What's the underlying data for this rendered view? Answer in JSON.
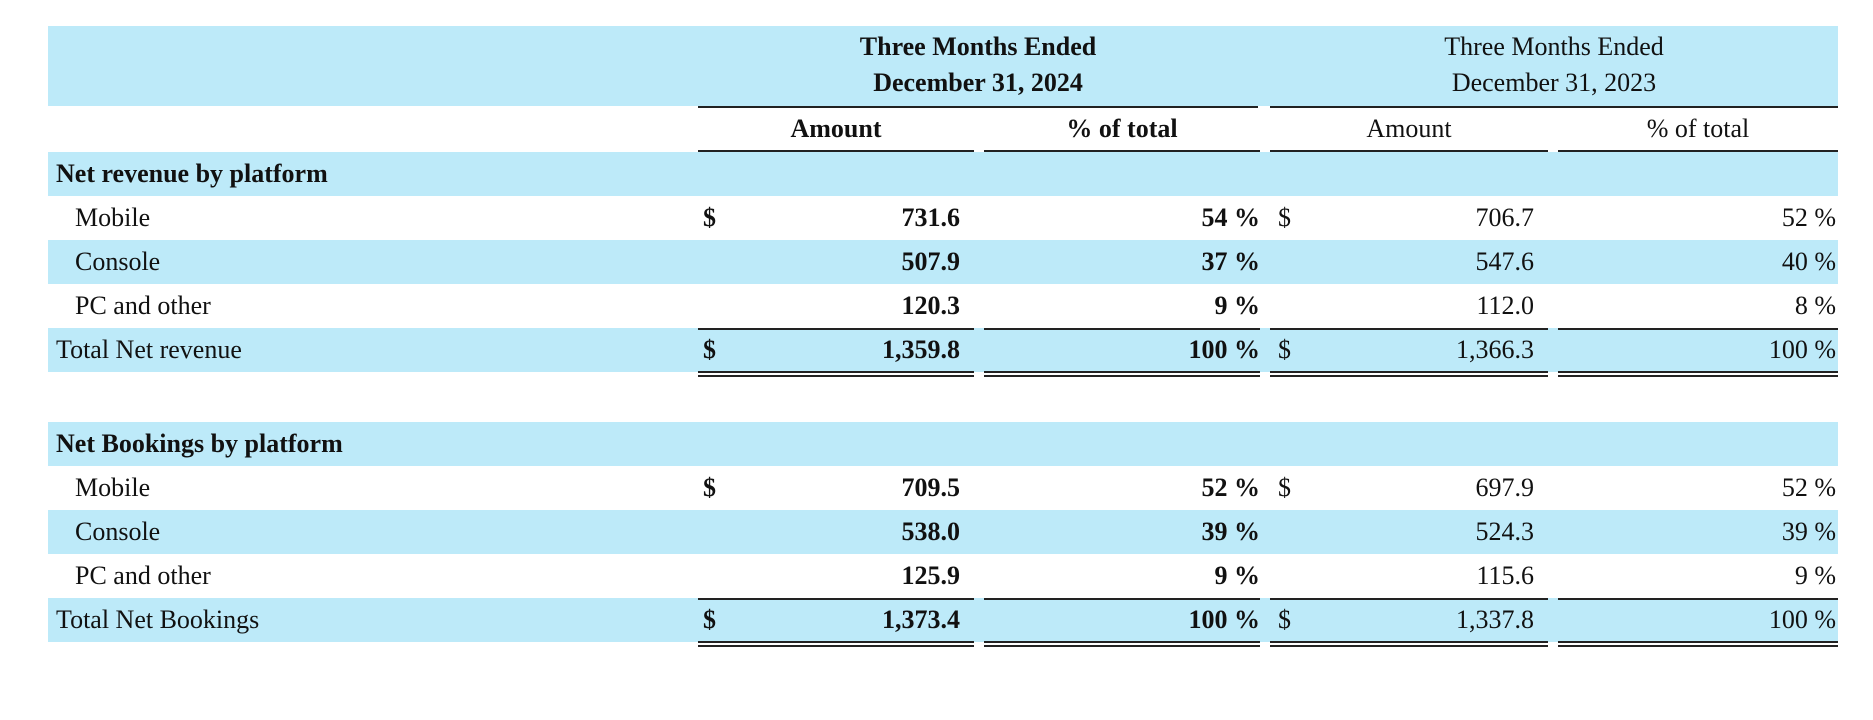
{
  "header": {
    "period_2024_line1": "Three Months Ended",
    "period_2024_line2": "December 31, 2024",
    "period_2023_line1": "Three Months Ended",
    "period_2023_line2": "December 31, 2023",
    "amount_2024": "Amount",
    "pct_2024": "% of total",
    "amount_2023": "Amount",
    "pct_2023": "% of total"
  },
  "sections": [
    {
      "title": "Net revenue by platform",
      "rows": [
        {
          "label": "Mobile",
          "dollar_2024": "$",
          "amount_2024": "731.6",
          "pct_2024": "54 %",
          "dollar_2023": "$",
          "amount_2023": "706.7",
          "pct_2023": "52 %"
        },
        {
          "label": "Console",
          "dollar_2024": "",
          "amount_2024": "507.9",
          "pct_2024": "37 %",
          "dollar_2023": "",
          "amount_2023": "547.6",
          "pct_2023": "40 %"
        },
        {
          "label": "PC and other",
          "dollar_2024": "",
          "amount_2024": "120.3",
          "pct_2024": "9 %",
          "dollar_2023": "",
          "amount_2023": "112.0",
          "pct_2023": "8 %"
        }
      ],
      "total": {
        "label": "Total Net revenue",
        "dollar_2024": "$",
        "amount_2024": "1,359.8",
        "pct_2024": "100 %",
        "dollar_2023": "$",
        "amount_2023": "1,366.3",
        "pct_2023": "100 %"
      }
    },
    {
      "title": "Net Bookings by platform",
      "rows": [
        {
          "label": "Mobile",
          "dollar_2024": "$",
          "amount_2024": "709.5",
          "pct_2024": "52 %",
          "dollar_2023": "$",
          "amount_2023": "697.9",
          "pct_2023": "52 %"
        },
        {
          "label": "Console",
          "dollar_2024": "",
          "amount_2024": "538.0",
          "pct_2024": "39 %",
          "dollar_2023": "",
          "amount_2023": "524.3",
          "pct_2023": "39 %"
        },
        {
          "label": "PC and other",
          "dollar_2024": "",
          "amount_2024": "125.9",
          "pct_2024": "9 %",
          "dollar_2023": "",
          "amount_2023": "115.6",
          "pct_2023": "9 %"
        }
      ],
      "total": {
        "label": "Total Net Bookings",
        "dollar_2024": "$",
        "amount_2024": "1,373.4",
        "pct_2024": "100 %",
        "dollar_2023": "$",
        "amount_2023": "1,337.8",
        "pct_2023": "100 %"
      }
    }
  ],
  "colors": {
    "band": "#bdeaf9",
    "rule": "#222222"
  }
}
